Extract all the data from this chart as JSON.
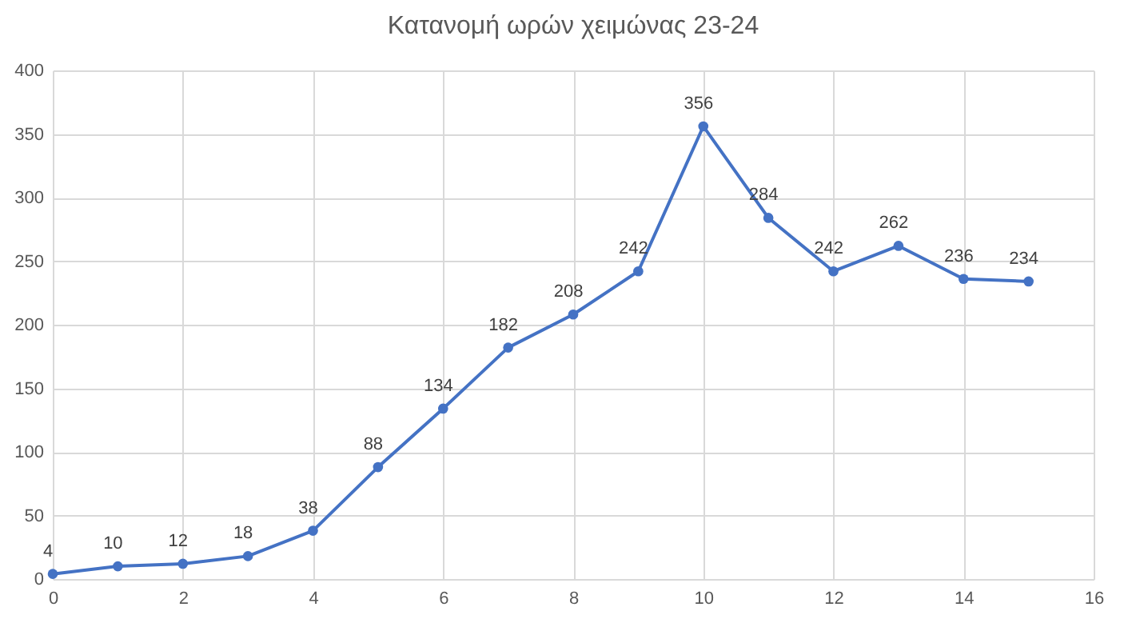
{
  "chart_data": {
    "type": "line",
    "title": "Κατανομή ωρών χειμώνας 23-24",
    "x": [
      0,
      1,
      2,
      3,
      4,
      5,
      6,
      7,
      8,
      9,
      10,
      11,
      12,
      13,
      14,
      15
    ],
    "series": [
      {
        "color": "#4472c4",
        "values": [
          4,
          10,
          12,
          18,
          38,
          88,
          134,
          182,
          208,
          242,
          356,
          284,
          242,
          262,
          236,
          234
        ]
      }
    ],
    "xlim": [
      0,
      16
    ],
    "xticks": [
      0,
      2,
      4,
      6,
      8,
      10,
      12,
      14,
      16
    ],
    "ylim": [
      0,
      400
    ],
    "yticks": [
      0,
      50,
      100,
      150,
      200,
      250,
      300,
      350,
      400
    ],
    "grid": true,
    "marker": "circle",
    "data_labels": true,
    "line_style": "solid"
  }
}
